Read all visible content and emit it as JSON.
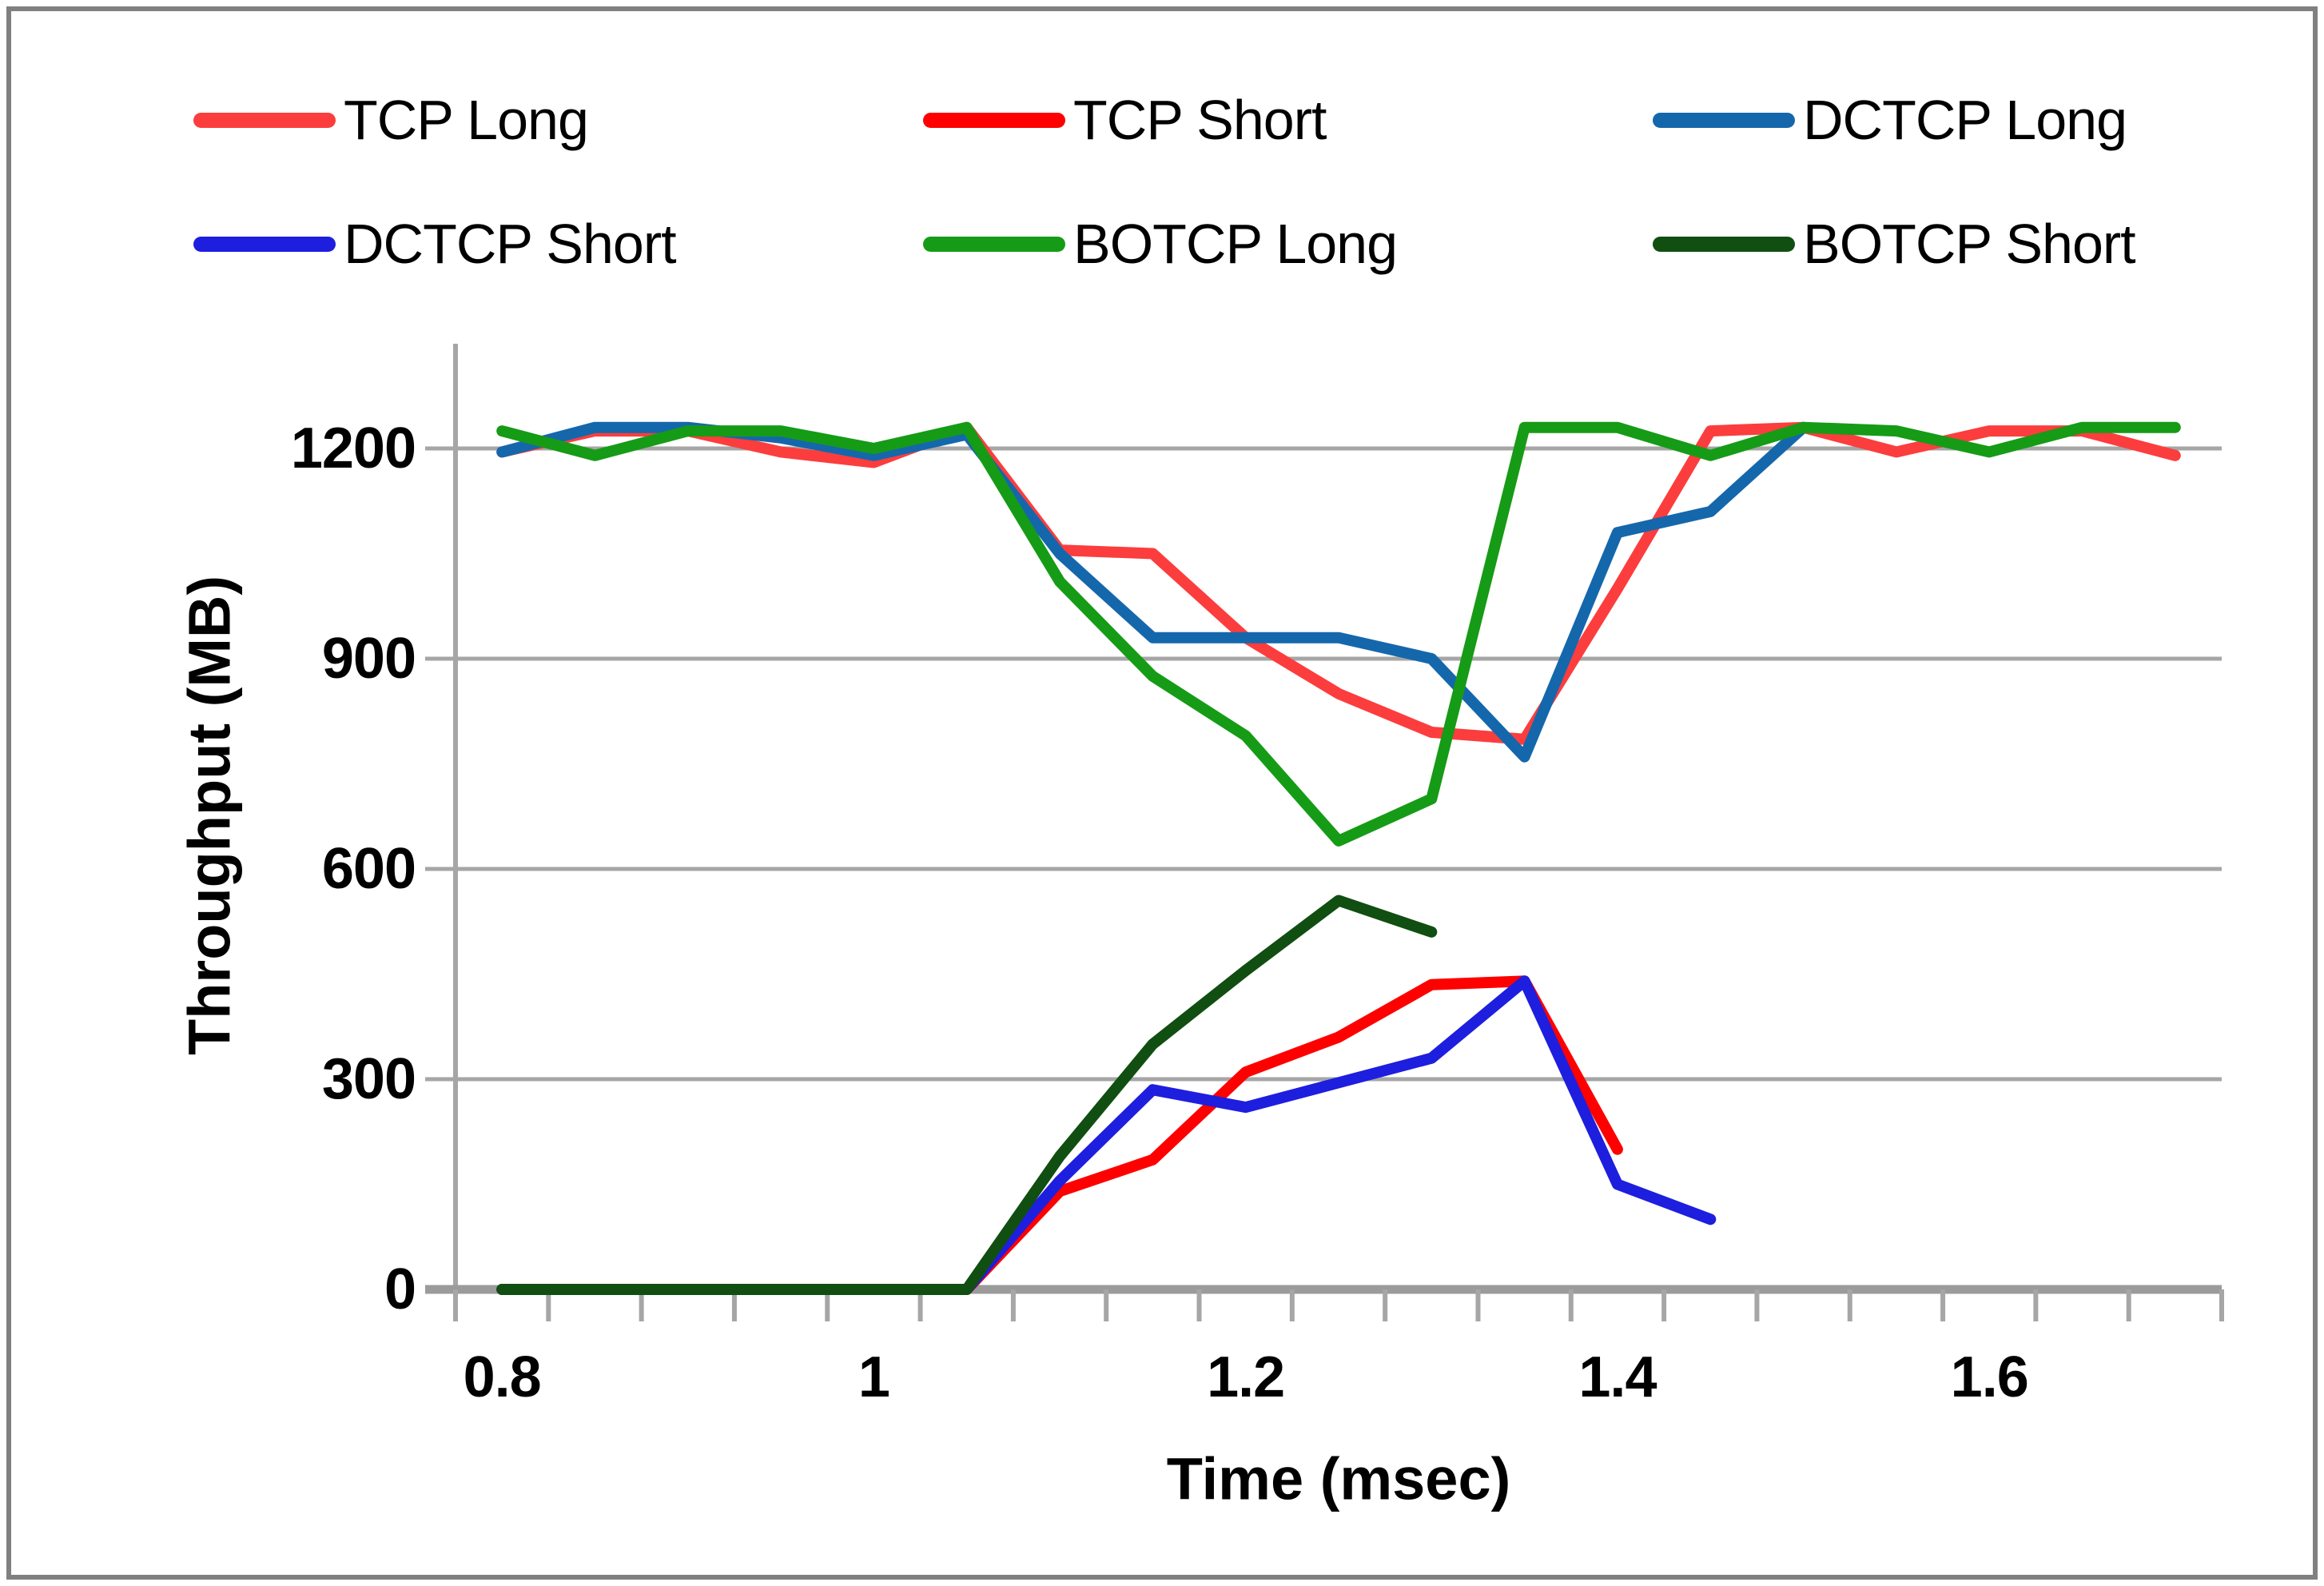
{
  "chart_data": {
    "type": "line",
    "title": "",
    "xlabel": "Time (msec)",
    "ylabel": "Throughput (MB)",
    "x_tick_labels": [
      "0.8",
      "1",
      "1.2",
      "1.4",
      "1.6"
    ],
    "x_tick_values": [
      0.8,
      1.0,
      1.2,
      1.4,
      1.6
    ],
    "y_tick_labels": [
      "0",
      "300",
      "600",
      "900",
      "1200"
    ],
    "y_tick_values": [
      0,
      300,
      600,
      900,
      1200
    ],
    "xlim": [
      0.775,
      1.725
    ],
    "ylim": [
      0,
      1345
    ],
    "grid": true,
    "legend_position": "top",
    "axis_color": "#A6A6A6",
    "gridline_color": "#A6A6A6",
    "x": [
      0.8,
      0.85,
      0.9,
      0.95,
      1.0,
      1.05,
      1.1,
      1.15,
      1.2,
      1.25,
      1.3,
      1.35,
      1.4,
      1.45,
      1.5,
      1.55,
      1.6,
      1.65,
      1.7
    ],
    "series": [
      {
        "name": "TCP Long",
        "color": "#FC3D3D",
        "values": [
          1195,
          1225,
          1225,
          1195,
          1180,
          1230,
          1055,
          1050,
          930,
          850,
          795,
          785,
          1000,
          1225,
          1230,
          1195,
          1225,
          1225,
          1190
        ]
      },
      {
        "name": "TCP Short",
        "color": "#FE0000",
        "values": [
          0,
          0,
          0,
          0,
          0,
          0,
          140,
          185,
          310,
          360,
          435,
          440,
          200,
          null,
          null,
          null,
          null,
          null,
          null
        ]
      },
      {
        "name": "DCTCP Long",
        "color": "#1567AC",
        "values": [
          1195,
          1230,
          1230,
          1215,
          1190,
          1220,
          1050,
          930,
          930,
          930,
          900,
          760,
          1080,
          1110,
          1230,
          null,
          null,
          null,
          null
        ]
      },
      {
        "name": "DCTCP Short",
        "color": "#1E1EDF",
        "values": [
          0,
          0,
          0,
          0,
          0,
          0,
          155,
          285,
          260,
          295,
          330,
          440,
          150,
          100,
          null,
          null,
          null,
          null,
          null
        ]
      },
      {
        "name": "BOTCP Long",
        "color": "#169B16",
        "values": [
          1225,
          1190,
          1225,
          1225,
          1200,
          1230,
          1010,
          875,
          790,
          640,
          700,
          1230,
          1230,
          1190,
          1230,
          1225,
          1195,
          1230,
          1230
        ]
      },
      {
        "name": "BOTCP Short",
        "color": "#114E11",
        "values": [
          0,
          0,
          0,
          0,
          0,
          0,
          190,
          350,
          455,
          555,
          510,
          null,
          null,
          null,
          null,
          null,
          null,
          null,
          null
        ]
      }
    ]
  },
  "frame": {
    "border_color": "#808080"
  }
}
